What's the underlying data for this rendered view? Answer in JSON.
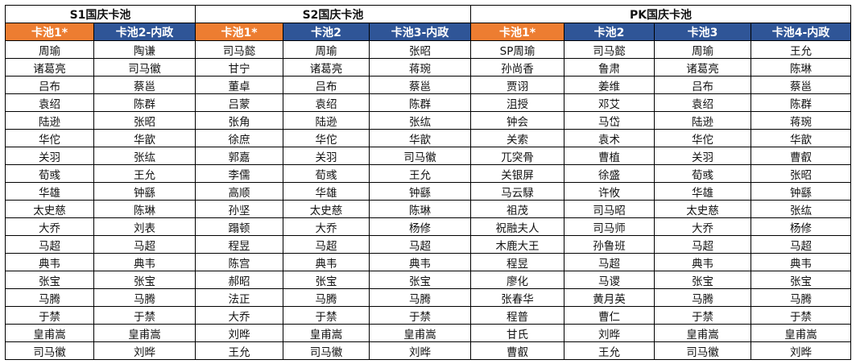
{
  "colors": {
    "highlight_header": "#ed7d31",
    "normal_header": "#2f5597"
  },
  "groups": [
    {
      "title": "S1国庆卡池",
      "span": 2
    },
    {
      "title": "S2国庆卡池",
      "span": 3
    },
    {
      "title": "PK国庆卡池",
      "span": 4
    }
  ],
  "columns": [
    {
      "label": "卡池1*",
      "highlight": true
    },
    {
      "label": "卡池2-内政",
      "highlight": false
    },
    {
      "label": "卡池1*",
      "highlight": true
    },
    {
      "label": "卡池2",
      "highlight": false
    },
    {
      "label": "卡池3-内政",
      "highlight": false
    },
    {
      "label": "卡池1*",
      "highlight": true
    },
    {
      "label": "卡池2",
      "highlight": false
    },
    {
      "label": "卡池3",
      "highlight": false
    },
    {
      "label": "卡池4-内政",
      "highlight": false
    }
  ],
  "rows": [
    [
      "周瑜",
      "陶谦",
      "司马懿",
      "周瑜",
      "张昭",
      "SP周瑜",
      "司马懿",
      "周瑜",
      "王允"
    ],
    [
      "诸葛亮",
      "司马徽",
      "甘宁",
      "诸葛亮",
      "蒋琬",
      "孙尚香",
      "鲁肃",
      "诸葛亮",
      "陈琳"
    ],
    [
      "吕布",
      "蔡邕",
      "董卓",
      "吕布",
      "蔡邕",
      "贾诩",
      "姜维",
      "吕布",
      "蔡邕"
    ],
    [
      "袁绍",
      "陈群",
      "吕蒙",
      "袁绍",
      "陈群",
      "沮授",
      "邓艾",
      "袁绍",
      "陈群"
    ],
    [
      "陆逊",
      "张昭",
      "张角",
      "陆逊",
      "张纮",
      "钟会",
      "马岱",
      "陆逊",
      "蒋琬"
    ],
    [
      "华佗",
      "华歆",
      "徐庶",
      "华佗",
      "华歆",
      "关索",
      "袁术",
      "华佗",
      "华歆"
    ],
    [
      "关羽",
      "张纮",
      "郭嘉",
      "关羽",
      "司马徽",
      "兀突骨",
      "曹植",
      "关羽",
      "曹叡"
    ],
    [
      "荀彧",
      "王允",
      "李儒",
      "荀彧",
      "王允",
      "关银屏",
      "徐盛",
      "荀彧",
      "张昭"
    ],
    [
      "华雄",
      "钟繇",
      "高顺",
      "华雄",
      "钟繇",
      "马云騄",
      "许攸",
      "华雄",
      "钟繇"
    ],
    [
      "太史慈",
      "陈琳",
      "孙坚",
      "太史慈",
      "陈琳",
      "祖茂",
      "司马昭",
      "太史慈",
      "张纮"
    ],
    [
      "大乔",
      "刘表",
      "蹋顿",
      "大乔",
      "杨修",
      "祝融夫人",
      "司马师",
      "大乔",
      "杨修"
    ],
    [
      "马超",
      "马超",
      "程昱",
      "马超",
      "马超",
      "木鹿大王",
      "孙鲁班",
      "马超",
      "马超"
    ],
    [
      "典韦",
      "典韦",
      "陈宫",
      "典韦",
      "典韦",
      "程昱",
      "马超",
      "典韦",
      "典韦"
    ],
    [
      "张宝",
      "张宝",
      "郝昭",
      "张宝",
      "张宝",
      "廖化",
      "马谡",
      "张宝",
      "张宝"
    ],
    [
      "马腾",
      "马腾",
      "法正",
      "马腾",
      "马腾",
      "张春华",
      "黄月英",
      "马腾",
      "马腾"
    ],
    [
      "于禁",
      "于禁",
      "大乔",
      "于禁",
      "于禁",
      "程普",
      "曹仁",
      "于禁",
      "于禁"
    ],
    [
      "皇甫嵩",
      "皇甫嵩",
      "刘晔",
      "皇甫嵩",
      "皇甫嵩",
      "甘氏",
      "刘晔",
      "皇甫嵩",
      "皇甫嵩"
    ],
    [
      "司马徽",
      "刘晔",
      "王允",
      "司马徽",
      "刘晔",
      "曹叡",
      "王允",
      "司马徽",
      "刘晔"
    ]
  ]
}
